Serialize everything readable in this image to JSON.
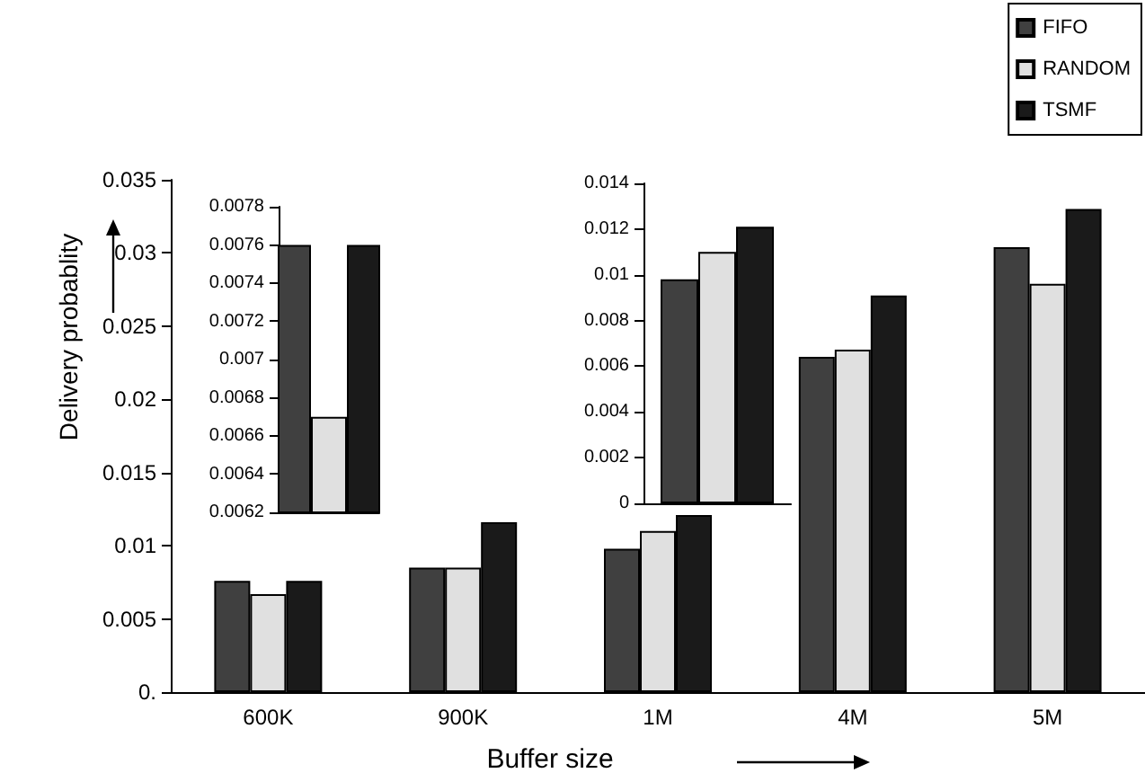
{
  "chart_data": [
    {
      "type": "bar",
      "xlabel": "Buffer size",
      "ylabel": "Delivery probablity",
      "categories": [
        "600K",
        "900K",
        "1M",
        "4M",
        "5M"
      ],
      "series": [
        {
          "name": "FIFO",
          "color": "#404040",
          "values": [
            0.0076,
            0.0085,
            0.0098,
            0.0229,
            0.0304
          ]
        },
        {
          "name": "RANDOM",
          "color": "#e0e0e0",
          "values": [
            0.0067,
            0.0085,
            0.011,
            0.0234,
            0.0279
          ]
        },
        {
          "name": "TSMF",
          "color": "#1a1a1a",
          "values": [
            0.0076,
            0.0116,
            0.0121,
            0.0271,
            0.033
          ]
        }
      ],
      "ylim": [
        0,
        0.035
      ],
      "yticks": [
        {
          "value": 0,
          "label": "0."
        },
        0.005,
        0.01,
        0.015,
        0.02,
        0.025,
        0.03,
        0.035
      ],
      "grid": false,
      "legend": "top right"
    },
    {
      "type": "bar",
      "categories": [
        null
      ],
      "series": [
        {
          "color": "#404040",
          "values": [
            0.0076
          ]
        },
        {
          "color": "#e0e0e0",
          "values": [
            0.0067
          ]
        },
        {
          "color": "#1a1a1a",
          "values": [
            0.0076
          ]
        }
      ],
      "ylim": [
        0.0062,
        0.0078
      ],
      "yticks": [
        0.0062,
        0.0064,
        0.0066,
        0.0068,
        0.007,
        0.0072,
        0.0074,
        0.0076,
        0.0078
      ],
      "grid": false,
      "tick_labels": "y"
    },
    {
      "type": "bar",
      "categories": [
        null
      ],
      "series": [
        {
          "color": "#404040",
          "values": [
            0.0098
          ]
        },
        {
          "color": "#e0e0e0",
          "values": [
            0.011
          ]
        },
        {
          "color": "#1a1a1a",
          "values": [
            0.0121
          ]
        }
      ],
      "ylim": [
        0,
        0.014
      ],
      "yticks": [
        0,
        0.002,
        0.004,
        0.006,
        0.008,
        0.01,
        0.012,
        0.014
      ],
      "grid": false,
      "tick_labels": "y"
    }
  ]
}
